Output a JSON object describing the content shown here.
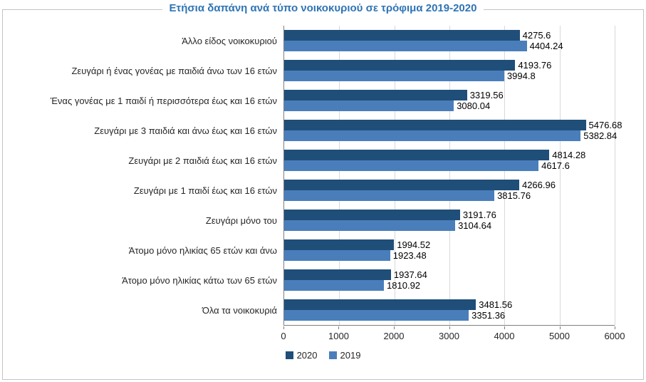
{
  "chart_data": {
    "type": "bar",
    "orientation": "horizontal",
    "title": "Ετήσια δαπάνη ανά τύπο νοικοκυριού σε τρόφιμα 2019-2020",
    "title_color": "#2e74b5",
    "categories": [
      "Άλλο είδος  νοικοκυριού",
      "Ζευγάρι ή ένας γονέας με παιδιά άνω των 16 ετών",
      "Ένας γονέας με 1 παιδί ή περισσότερα έως και 16 ετών",
      "Ζευγάρι με 3 παιδιά και άνω έως και 16 ετών",
      "Ζευγάρι με 2 παιδιά έως και 16 ετών",
      "Ζευγάρι με 1 παιδί έως και 16 ετών",
      "Ζευγάρι μόνο του",
      "Άτομο μόνο ηλικίας 65 ετών και άνω",
      "Άτομο μόνο ηλικίας κάτω των 65 ετών",
      "Όλα τα νοικοκυριά"
    ],
    "series": [
      {
        "name": "2020",
        "color": "#1f4e79",
        "values": [
          4275.6,
          4193.76,
          3319.56,
          5476.68,
          4814.28,
          4266.96,
          3191.76,
          1994.52,
          1937.64,
          3481.56
        ]
      },
      {
        "name": "2019",
        "color": "#4a7ebb",
        "values": [
          4404.24,
          3994.8,
          3080.04,
          5382.84,
          4617.6,
          3815.76,
          3104.64,
          1923.48,
          1810.92,
          3351.36
        ]
      }
    ],
    "xlim": [
      0,
      6000
    ],
    "xticks": [
      0,
      1000,
      2000,
      3000,
      4000,
      5000,
      6000
    ],
    "grid": true,
    "legend_position": "bottom",
    "value_labels": true
  }
}
